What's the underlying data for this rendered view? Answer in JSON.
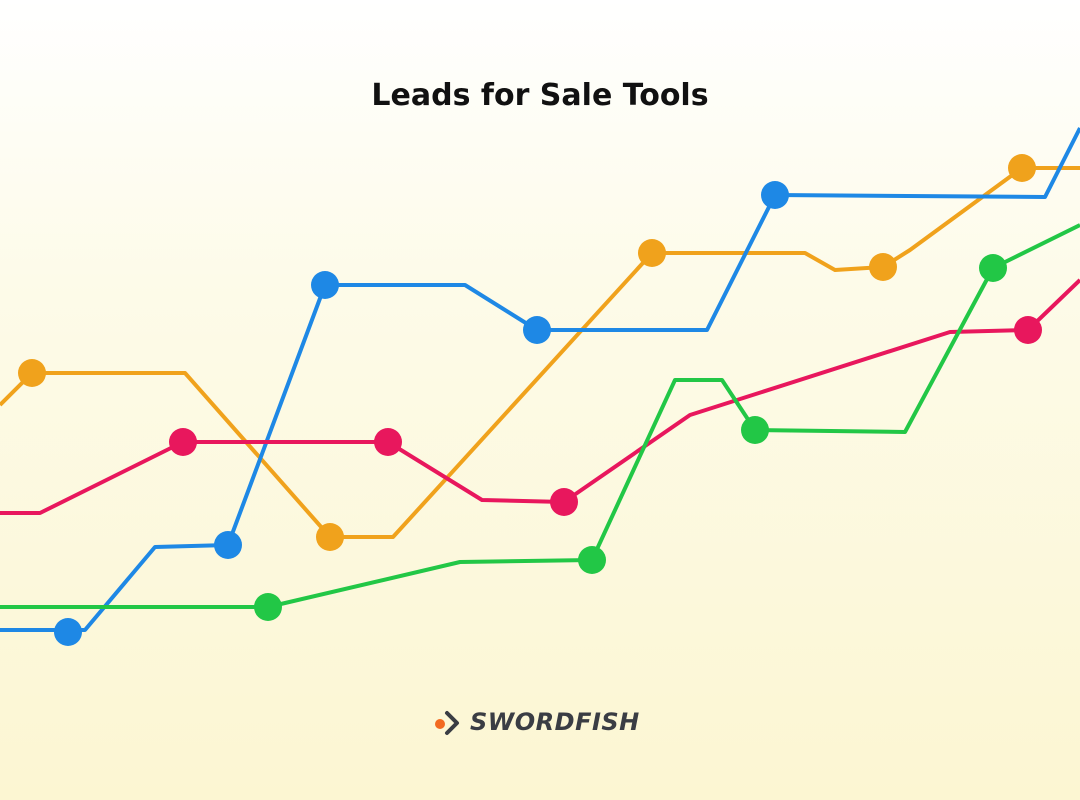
{
  "title": "Leads for Sale Tools",
  "logo": {
    "text": "SWORDFISH"
  }
}
